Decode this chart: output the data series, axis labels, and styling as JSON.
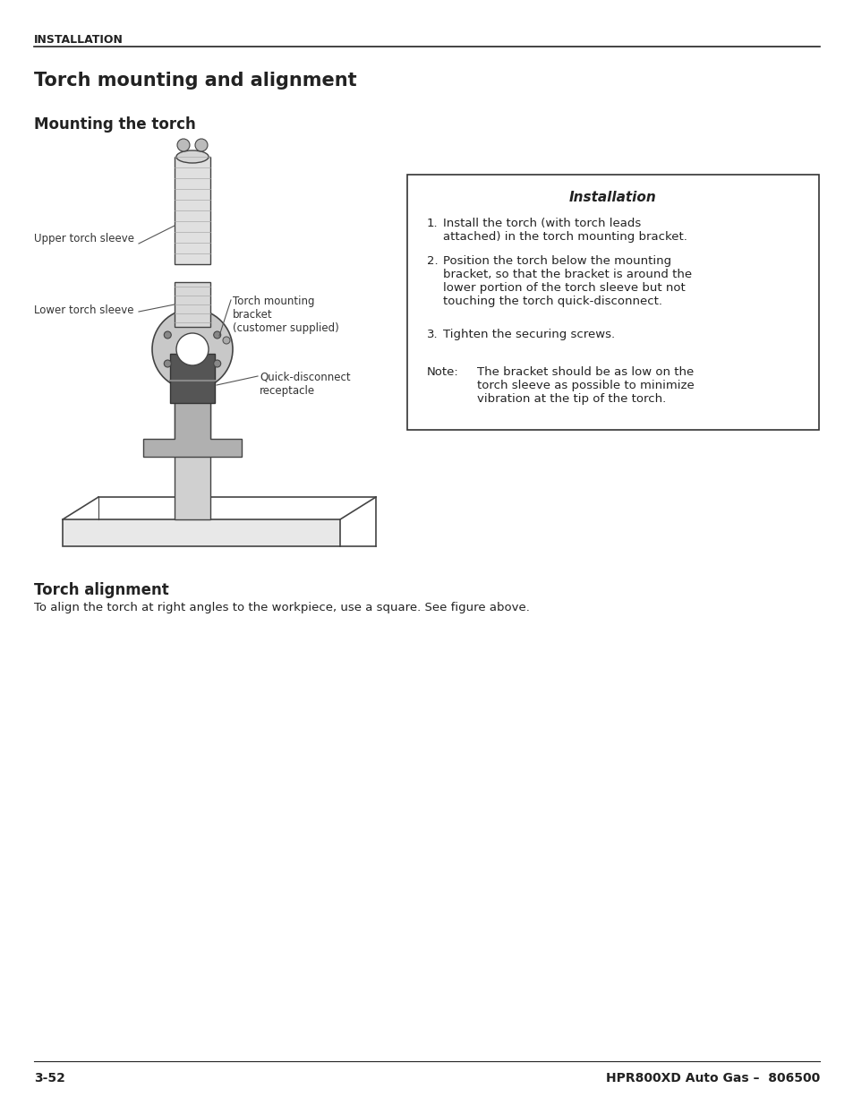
{
  "page_bg": "#ffffff",
  "header_label": "INSTALLATION",
  "title1": "Torch mounting and alignment",
  "title2": "Mounting the torch",
  "title3": "Torch alignment",
  "title3_body": "To align the torch at right angles to the workpiece, use a square. See figure above.",
  "box_title": "Installation",
  "box_items": [
    "Install the torch (with torch leads\nattached) in the torch mounting bracket.",
    "Position the torch below the mounting\nbracket, so that the bracket is around the\nlower portion of the torch sleeve but not\ntouching the torch quick-disconnect.",
    "Tighten the securing screws."
  ],
  "box_note_label": "Note:",
  "box_note_text": "The bracket should be as low on the\ntorch sleeve as possible to minimize\nvibration at the tip of the torch.",
  "label_upper_sleeve": "Upper torch sleeve",
  "label_lower_sleeve": "Lower torch sleeve",
  "label_bracket": "Torch mounting\nbracket\n(customer supplied)",
  "label_quick": "Quick-disconnect\nreceptacle",
  "footer_left": "3-52",
  "footer_right": "HPR800XD Auto Gas –  806500"
}
